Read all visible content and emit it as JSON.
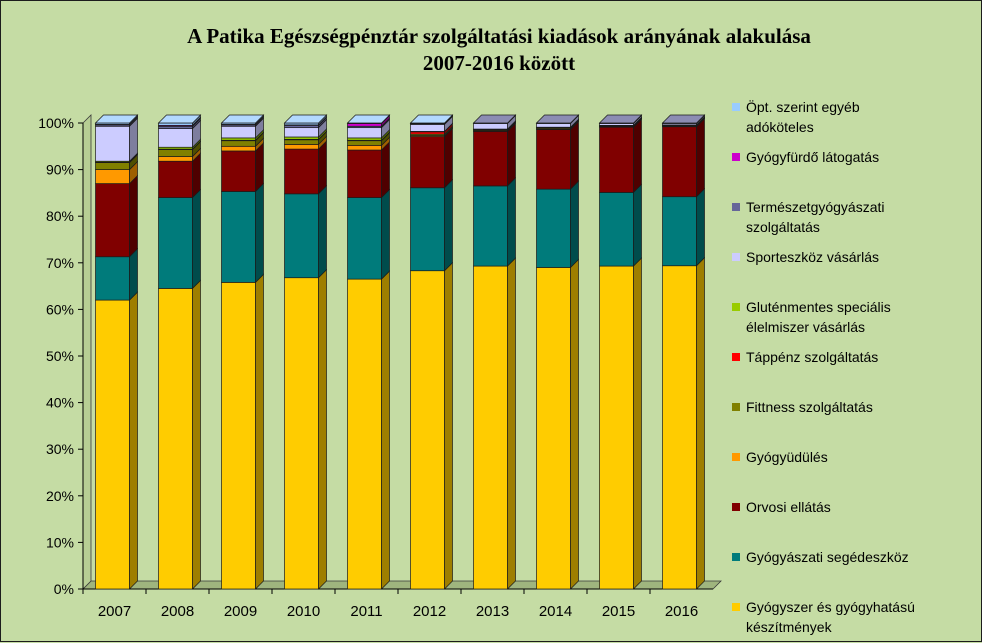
{
  "chart_data": {
    "type": "bar",
    "stacked": true,
    "percent": true,
    "three_d": true,
    "title": [
      "A Patika Egészségpénztár szolgáltatási kiadások arányának alakulása",
      "2007-2016 között"
    ],
    "categories": [
      "2007",
      "2008",
      "2009",
      "2010",
      "2011",
      "2012",
      "2013",
      "2014",
      "2015",
      "2016"
    ],
    "ylim": [
      0,
      100
    ],
    "yticks": [
      "0%",
      "10%",
      "20%",
      "30%",
      "40%",
      "50%",
      "60%",
      "70%",
      "80%",
      "90%",
      "100%"
    ],
    "gridlines": false,
    "legend_position": "right",
    "series": [
      {
        "name": "Gyógyszer és gyógyhatású készítmények",
        "color": "#ffcc00",
        "values": [
          62,
          64.5,
          65.8,
          66.8,
          66.5,
          68.3,
          69.3,
          69.0,
          69.3,
          69.3
        ]
      },
      {
        "name": "Gyógyászati segédeszköz",
        "color": "#007b7b",
        "values": [
          9.3,
          19.5,
          19.5,
          18.0,
          17.5,
          17.8,
          17.2,
          16.8,
          15.8,
          14.8
        ]
      },
      {
        "name": "Orvosi ellátás",
        "color": "#800000",
        "values": [
          15.7,
          7.8,
          8.7,
          9.6,
          10.2,
          11.0,
          11.7,
          12.8,
          14.0,
          15.0
        ]
      },
      {
        "name": "Gyógyüdülés",
        "color": "#ff9900",
        "values": [
          3.0,
          1.0,
          1.0,
          1.0,
          1.0,
          0.2,
          0.1,
          0.1,
          0.1,
          0.1
        ]
      },
      {
        "name": "Fittness szolgáltatás",
        "color": "#808000",
        "values": [
          1.5,
          1.5,
          1.2,
          1.0,
          1.0,
          0.3,
          0.2,
          0.2,
          0.1,
          0.1
        ]
      },
      {
        "name": "Táppénz szolgáltatás",
        "color": "#ff0000",
        "values": [
          0.1,
          0.1,
          0.1,
          0.1,
          0.1,
          0.5,
          0.1,
          0.1,
          0.1,
          0.1
        ]
      },
      {
        "name": "Gluténmentes speciális élelmiszer vásárlás",
        "color": "#99cc00",
        "values": [
          0.2,
          0.4,
          0.5,
          0.5,
          0.5,
          0.1,
          0.1,
          0.1,
          0.1,
          0.1
        ]
      },
      {
        "name": "Sporteszköz vásárlás",
        "color": "#ccccff",
        "values": [
          7.5,
          4.0,
          2.5,
          2.0,
          2.2,
          1.5,
          1.2,
          0.8,
          0.4,
          0.3
        ]
      },
      {
        "name": "Természetgyógyászati szolgáltatás",
        "color": "#666699",
        "values": [
          0.3,
          0.5,
          0.3,
          0.5,
          0.3,
          0.1,
          0.1,
          0.1,
          0.1,
          0.1
        ]
      },
      {
        "name": "Gyógyfürdő látogatás",
        "color": "#cc00cc",
        "values": [
          0.1,
          0.2,
          0.1,
          0.1,
          0.6,
          0.1,
          0.0,
          0.0,
          0.0,
          0.0
        ]
      },
      {
        "name": "Öpt. szerint egyéb adóköteles",
        "color": "#99ccff",
        "values": [
          0.3,
          0.5,
          0.3,
          0.4,
          0.1,
          0.1,
          0.0,
          0.0,
          0.0,
          0.0
        ]
      }
    ],
    "legend_lines": [
      [
        "Öpt. szerint egyéb",
        "adóköteles"
      ],
      [
        "Gyógyfürdő látogatás"
      ],
      [
        "Természetgyógyászati",
        "szolgáltatás"
      ],
      [
        "Sporteszköz vásárlás"
      ],
      [
        "Gluténmentes speciális",
        "élelmiszer vásárlás"
      ],
      [
        "Táppénz szolgáltatás"
      ],
      [
        "Fittness szolgáltatás"
      ],
      [
        "Gyógyüdülés"
      ],
      [
        "Orvosi ellátás"
      ],
      [
        "Gyógyászati segédeszköz"
      ],
      [
        "Gyógyszer és gyógyhatású",
        "készítmények"
      ]
    ]
  }
}
